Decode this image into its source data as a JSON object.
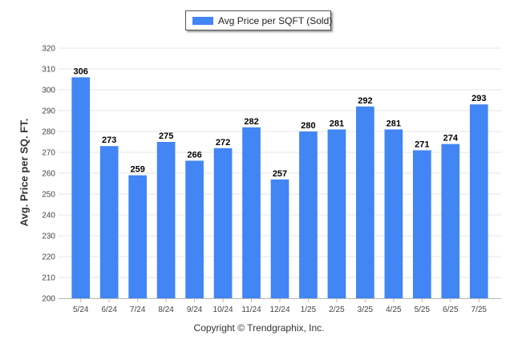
{
  "chart_data": {
    "type": "bar",
    "categories": [
      "5/24",
      "6/24",
      "7/24",
      "8/24",
      "9/24",
      "10/24",
      "11/24",
      "12/24",
      "1/25",
      "2/25",
      "3/25",
      "4/25",
      "5/25",
      "6/25",
      "7/25"
    ],
    "series": [
      {
        "name": "Avg Price per SQFT (Sold)",
        "values": [
          306,
          273,
          259,
          275,
          266,
          272,
          282,
          257,
          280,
          281,
          292,
          281,
          271,
          274,
          293
        ]
      }
    ],
    "ylabel": "Avg. Price per SQ. FT.",
    "xlabel": "",
    "ylim": [
      200,
      320
    ],
    "yticks": [
      200,
      210,
      220,
      230,
      240,
      250,
      260,
      270,
      280,
      290,
      300,
      310,
      320
    ],
    "grid": true,
    "legend_position": "top-center",
    "bar_color": "#4285f4"
  },
  "footer": "Copyright © Trendgraphix, Inc."
}
